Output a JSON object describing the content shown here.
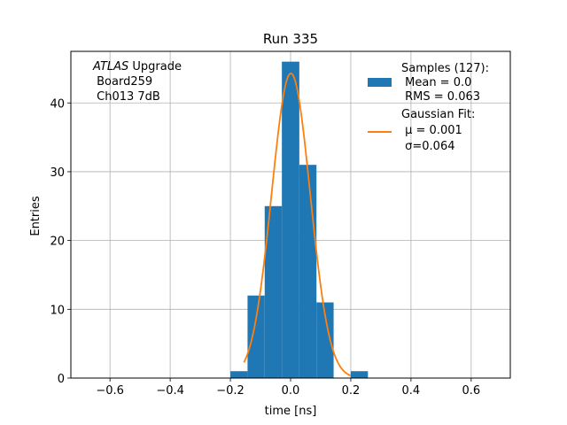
{
  "chart_data": {
    "type": "bar",
    "title": "Run 335",
    "xlabel": "time [ns]",
    "ylabel": "Entries",
    "xlim": [
      -0.73,
      0.73
    ],
    "ylim": [
      0,
      47.5
    ],
    "grid": true,
    "x_ticks": [
      -0.6,
      -0.4,
      -0.2,
      0.0,
      0.2,
      0.4,
      0.6
    ],
    "x_tick_labels": [
      "−0.6",
      "−0.4",
      "−0.2",
      "0.0",
      "0.2",
      "0.4",
      "0.6"
    ],
    "y_ticks": [
      0,
      10,
      20,
      30,
      40
    ],
    "y_tick_labels": [
      "0",
      "10",
      "20",
      "30",
      "40"
    ],
    "histogram": {
      "name": "Samples (127):",
      "color": "#1f77b4",
      "bin_edges": [
        -0.2,
        -0.143,
        -0.086,
        -0.029,
        0.029,
        0.086,
        0.143,
        0.2,
        0.257
      ],
      "counts": [
        1,
        12,
        25,
        46,
        31,
        11,
        0,
        1
      ]
    },
    "fit": {
      "name": "Gaussian Fit:",
      "color": "#ff7f0e",
      "amplitude": 44.3,
      "mu": 0.001,
      "sigma": 0.064,
      "x_range": [
        -0.155,
        0.2
      ]
    },
    "legend": {
      "location": "upper right",
      "entries": [
        {
          "lines": [
            "Samples (127):",
            " Mean = 0.0",
            " RMS = 0.063"
          ]
        },
        {
          "lines": [
            "Gaussian Fit:",
            " μ = 0.001",
            " σ=0.064"
          ]
        }
      ]
    },
    "annotation": {
      "italic": "ATLAS",
      "rest": " Upgrade",
      "lines": [
        " Board259",
        " Ch013 7dB"
      ]
    }
  }
}
